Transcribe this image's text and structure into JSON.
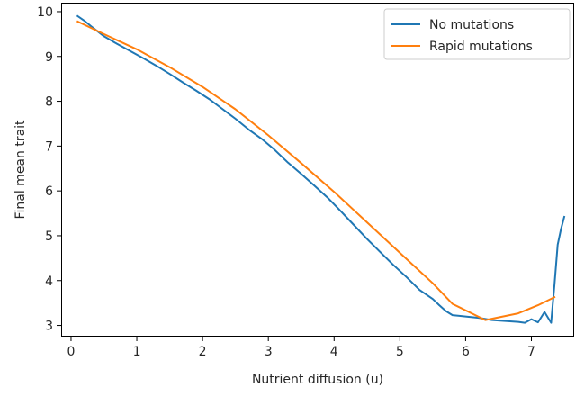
{
  "chart_data": {
    "type": "line",
    "title": "",
    "xlabel": "Nutrient diffusion (u)",
    "ylabel": "Final mean trait",
    "xlim": [
      -0.15,
      7.65
    ],
    "ylim": [
      2.75,
      10.2
    ],
    "xticks": [
      0,
      1,
      2,
      3,
      4,
      5,
      6,
      7
    ],
    "yticks": [
      3,
      4,
      5,
      6,
      7,
      8,
      9,
      10
    ],
    "grid": false,
    "legend_position": "top-right",
    "series": [
      {
        "name": "No mutations",
        "color": "#1f77b4",
        "x": [
          0.1,
          0.2,
          0.3,
          0.5,
          0.7,
          0.9,
          1.1,
          1.3,
          1.5,
          1.7,
          1.9,
          2.1,
          2.3,
          2.5,
          2.7,
          2.9,
          3.1,
          3.3,
          3.5,
          3.7,
          3.9,
          4.1,
          4.3,
          4.5,
          4.7,
          4.9,
          5.1,
          5.3,
          5.5,
          5.6,
          5.7,
          5.8,
          6.0,
          6.2,
          6.4,
          6.6,
          6.8,
          6.9,
          7.0,
          7.1,
          7.2,
          7.3,
          7.35,
          7.4,
          7.45,
          7.5
        ],
        "y": [
          9.9,
          9.8,
          9.68,
          9.45,
          9.28,
          9.12,
          8.96,
          8.79,
          8.61,
          8.42,
          8.24,
          8.05,
          7.83,
          7.61,
          7.37,
          7.16,
          6.91,
          6.63,
          6.38,
          6.12,
          5.85,
          5.55,
          5.24,
          4.93,
          4.64,
          4.35,
          4.08,
          3.79,
          3.59,
          3.45,
          3.32,
          3.23,
          3.2,
          3.17,
          3.12,
          3.1,
          3.08,
          3.06,
          3.14,
          3.07,
          3.3,
          3.06,
          3.9,
          4.8,
          5.15,
          5.42
        ]
      },
      {
        "name": "Rapid mutations",
        "color": "#ff7f0e",
        "x": [
          0.1,
          0.5,
          1.0,
          1.5,
          2.0,
          2.5,
          3.0,
          3.5,
          4.0,
          4.5,
          5.0,
          5.5,
          5.8,
          6.3,
          6.8,
          7.1,
          7.35
        ],
        "y": [
          9.78,
          9.5,
          9.16,
          8.76,
          8.32,
          7.82,
          7.24,
          6.62,
          5.98,
          5.3,
          4.62,
          3.94,
          3.48,
          3.12,
          3.27,
          3.45,
          3.63
        ]
      }
    ]
  }
}
